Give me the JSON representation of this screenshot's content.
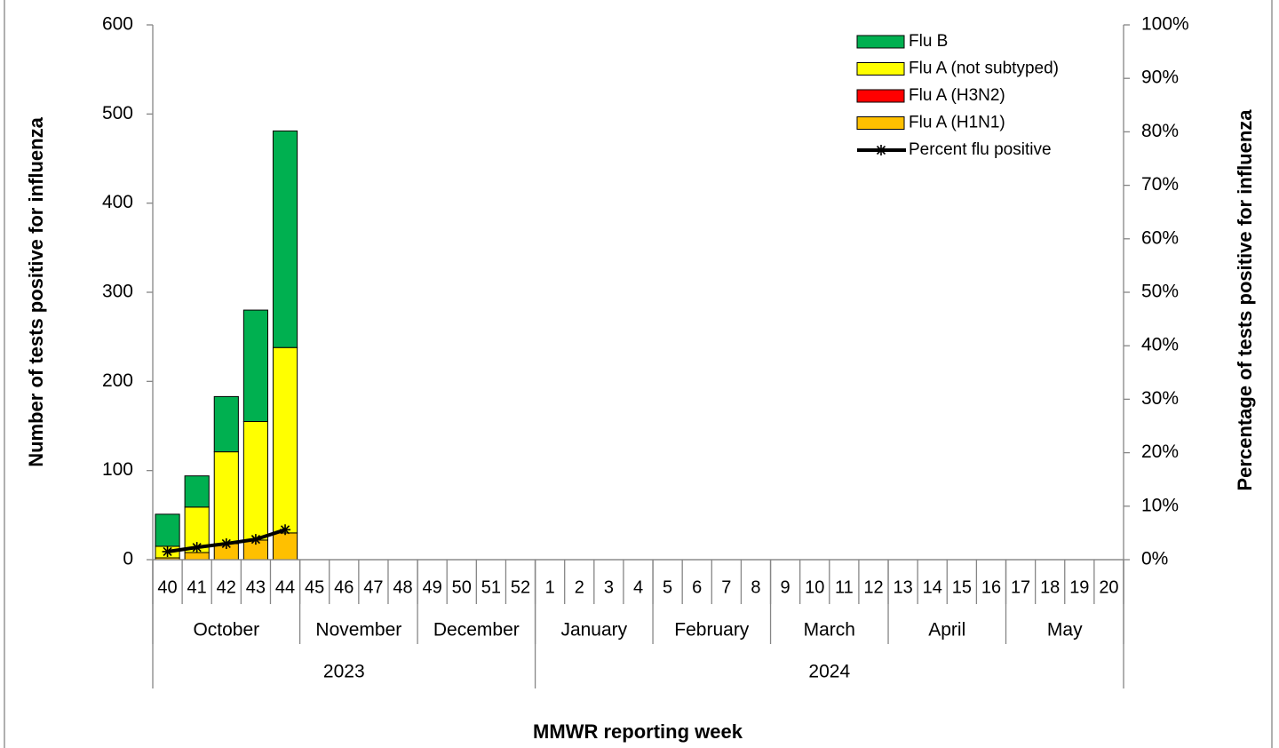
{
  "chart_data": {
    "type": "bar",
    "stacked": true,
    "x_title": "MMWR reporting week",
    "y_title": "Number of tests positive for influenza",
    "y2_title": "Percentage  of  tests  positive for influenza",
    "categories": [
      "40",
      "41",
      "42",
      "43",
      "44",
      "45",
      "46",
      "47",
      "48",
      "49",
      "50",
      "51",
      "52",
      "1",
      "2",
      "3",
      "4",
      "5",
      "6",
      "7",
      "8",
      "9",
      "10",
      "11",
      "12",
      "13",
      "14",
      "15",
      "16",
      "17",
      "18",
      "19",
      "20"
    ],
    "month_groups": [
      {
        "label": "October",
        "count": 5
      },
      {
        "label": "November",
        "count": 4
      },
      {
        "label": "December",
        "count": 4
      },
      {
        "label": "January",
        "count": 4
      },
      {
        "label": "February",
        "count": 4
      },
      {
        "label": "March",
        "count": 4
      },
      {
        "label": "April",
        "count": 4
      },
      {
        "label": "May",
        "count": 4
      }
    ],
    "year_groups": [
      {
        "label": "2023",
        "count": 13
      },
      {
        "label": "2024",
        "count": 20
      }
    ],
    "ylim": [
      0,
      600
    ],
    "yticks": [
      0,
      100,
      200,
      300,
      400,
      500,
      600
    ],
    "y2lim": [
      0,
      100
    ],
    "y2ticks": [
      {
        "value": 0,
        "label": "0%"
      },
      {
        "value": 10,
        "label": "10%"
      },
      {
        "value": 20,
        "label": "20%"
      },
      {
        "value": 30,
        "label": "30%"
      },
      {
        "value": 40,
        "label": "40%"
      },
      {
        "value": 50,
        "label": "50%"
      },
      {
        "value": 60,
        "label": "60%"
      },
      {
        "value": 70,
        "label": "70%"
      },
      {
        "value": 80,
        "label": "80%"
      },
      {
        "value": 90,
        "label": "90%"
      },
      {
        "value": 100,
        "label": "100%"
      }
    ],
    "legend": "top-right",
    "series": [
      {
        "name": "Flu A (H1N1)",
        "color": "#ffc000",
        "values": [
          2,
          8,
          18,
          22,
          30,
          null,
          null,
          null,
          null,
          null,
          null,
          null,
          null,
          null,
          null,
          null,
          null,
          null,
          null,
          null,
          null,
          null,
          null,
          null,
          null,
          null,
          null,
          null,
          null,
          null,
          null,
          null,
          null
        ]
      },
      {
        "name": "Flu A (H3N2)",
        "color": "#ff0000",
        "values": [
          0,
          0,
          0,
          0,
          0,
          null,
          null,
          null,
          null,
          null,
          null,
          null,
          null,
          null,
          null,
          null,
          null,
          null,
          null,
          null,
          null,
          null,
          null,
          null,
          null,
          null,
          null,
          null,
          null,
          null,
          null,
          null,
          null
        ]
      },
      {
        "name": "Flu A (not subtyped)",
        "color": "#ffff00",
        "values": [
          13,
          51,
          103,
          133,
          208,
          null,
          null,
          null,
          null,
          null,
          null,
          null,
          null,
          null,
          null,
          null,
          null,
          null,
          null,
          null,
          null,
          null,
          null,
          null,
          null,
          null,
          null,
          null,
          null,
          null,
          null,
          null,
          null
        ]
      },
      {
        "name": "Flu B",
        "color": "#00b050",
        "values": [
          36,
          35,
          62,
          125,
          243,
          null,
          null,
          null,
          null,
          null,
          null,
          null,
          null,
          null,
          null,
          null,
          null,
          null,
          null,
          null,
          null,
          null,
          null,
          null,
          null,
          null,
          null,
          null,
          null,
          null,
          null,
          null,
          null
        ]
      },
      {
        "name": "Percent flu positive",
        "color": "#000000",
        "type": "line",
        "axis": "y2",
        "values": [
          1.5,
          2.3,
          3.0,
          3.8,
          5.6,
          null,
          null,
          null,
          null,
          null,
          null,
          null,
          null,
          null,
          null,
          null,
          null,
          null,
          null,
          null,
          null,
          null,
          null,
          null,
          null,
          null,
          null,
          null,
          null,
          null,
          null,
          null,
          null
        ]
      }
    ]
  }
}
